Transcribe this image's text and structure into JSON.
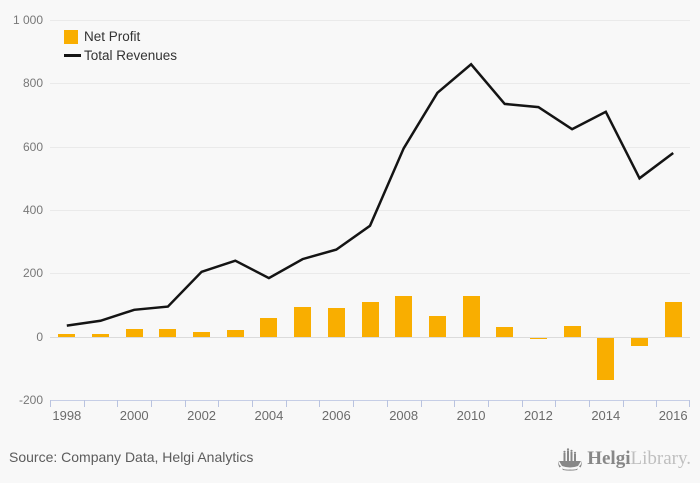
{
  "chart_data": {
    "type": "bar+line",
    "categories": [
      "1998",
      "1999",
      "2000",
      "2001",
      "2002",
      "2003",
      "2004",
      "2005",
      "2006",
      "2007",
      "2008",
      "2009",
      "2010",
      "2011",
      "2012",
      "2013",
      "2014",
      "2015",
      "2016"
    ],
    "series": [
      {
        "name": "Net Profit",
        "type": "bar",
        "color": "#F9AE00",
        "values": [
          8,
          10,
          25,
          25,
          15,
          20,
          60,
          95,
          90,
          110,
          130,
          65,
          130,
          30,
          -5,
          35,
          -135,
          -25,
          110
        ]
      },
      {
        "name": "Total Revenues",
        "type": "line",
        "color": "#141414",
        "values": [
          35,
          50,
          85,
          95,
          205,
          240,
          185,
          245,
          275,
          350,
          595,
          770,
          860,
          735,
          725,
          655,
          710,
          500,
          580
        ]
      }
    ],
    "ylim": [
      -200,
      1000
    ],
    "yticks": [
      {
        "value": 1000,
        "label": "1 000"
      },
      {
        "value": 800,
        "label": "800"
      },
      {
        "value": 600,
        "label": "600"
      },
      {
        "value": 400,
        "label": "400"
      },
      {
        "value": 200,
        "label": "200"
      },
      {
        "value": 0,
        "label": "0"
      },
      {
        "value": -200,
        "label": "-200"
      }
    ],
    "xtick_labels": [
      "1998",
      "2000",
      "2002",
      "2004",
      "2006",
      "2008",
      "2010",
      "2012",
      "2014",
      "2016"
    ],
    "grid": true,
    "legend_position": "top-left"
  },
  "footer": {
    "source_text": "Source: Company Data, Helgi Analytics"
  },
  "logo": {
    "brand_bold": "Helgi",
    "brand_light": "Library.",
    "icon": "helgi-ship-icon"
  },
  "colors": {
    "background": "#F8F8F8",
    "bar": "#F9AE00",
    "line": "#141414",
    "grid": "#EAEAEA",
    "zero_grid": "#DBDBDB",
    "axis": "#C6CEE6",
    "tick": "#B9C3E0",
    "axis_text": "#6B6B6B",
    "legend_text": "#333333",
    "source_text": "#5C5C5C",
    "logo_gray": "#878787",
    "logo_light": "#BFBFBF"
  }
}
